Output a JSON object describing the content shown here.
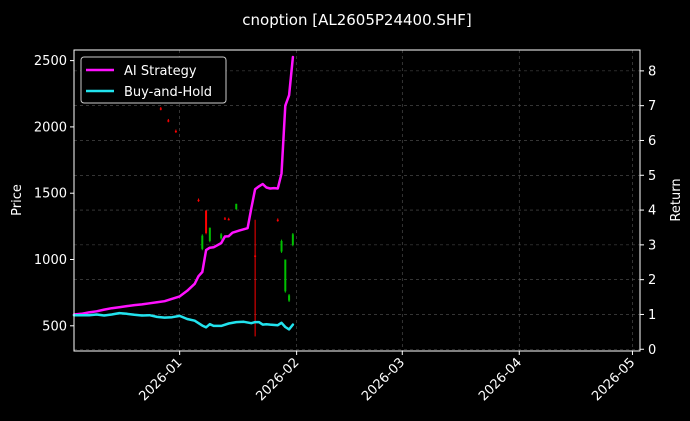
{
  "chart_data": {
    "type": "line",
    "title": "cnoption [AL2605P24400.SHF]",
    "ylabel_left": "Price",
    "ylabel_right": "Return",
    "xlim": [
      "2025-12-04",
      "2026-05-03"
    ],
    "ylim_left": [
      310,
      2580
    ],
    "ylim_right": [
      -0.05,
      8.6
    ],
    "x_ticks": [
      "2026-01-01",
      "2026-02-01",
      "2026-03-01",
      "2026-04-01",
      "2026-05-01"
    ],
    "x_tick_labels": [
      "2026-01",
      "2026-02",
      "2026-03",
      "2026-04",
      "2026-05"
    ],
    "y_left_ticks": [
      500,
      1000,
      1500,
      2000,
      2500
    ],
    "y_right_ticks": [
      0,
      1,
      2,
      3,
      4,
      5,
      6,
      7,
      8
    ],
    "grid": true,
    "legend_position": "upper-left",
    "colors": {
      "background": "#000000",
      "axes": "#ffffff",
      "grid": "#555555",
      "ai_strategy": "#ff11ff",
      "buy_and_hold": "#22e3ee",
      "candle_up": "#ff0000",
      "candle_down": "#00c000"
    },
    "series": [
      {
        "name": "AI Strategy",
        "axis": "right",
        "x": [
          "2025-12-04",
          "2025-12-06",
          "2025-12-08",
          "2025-12-10",
          "2025-12-12",
          "2025-12-14",
          "2025-12-16",
          "2025-12-18",
          "2025-12-20",
          "2025-12-22",
          "2025-12-24",
          "2025-12-26",
          "2025-12-28",
          "2025-12-30",
          "2026-01-01",
          "2026-01-03",
          "2026-01-05",
          "2026-01-06",
          "2026-01-07",
          "2026-01-08",
          "2026-01-09",
          "2026-01-10",
          "2026-01-12",
          "2026-01-13",
          "2026-01-14",
          "2026-01-15",
          "2026-01-17",
          "2026-01-19",
          "2026-01-20",
          "2026-01-21",
          "2026-01-22",
          "2026-01-23",
          "2026-01-24",
          "2026-01-25",
          "2026-01-26",
          "2026-01-27",
          "2026-01-28",
          "2026-01-29",
          "2026-01-30",
          "2026-01-31"
        ],
        "values": [
          1.0,
          1.02,
          1.06,
          1.09,
          1.14,
          1.18,
          1.21,
          1.24,
          1.27,
          1.29,
          1.32,
          1.35,
          1.38,
          1.45,
          1.52,
          1.68,
          1.88,
          2.1,
          2.22,
          2.85,
          2.92,
          2.93,
          3.05,
          3.24,
          3.25,
          3.35,
          3.42,
          3.48,
          4.05,
          4.6,
          4.68,
          4.75,
          4.65,
          4.62,
          4.63,
          4.62,
          5.05,
          7.0,
          7.3,
          8.4
        ]
      },
      {
        "name": "Buy-and-Hold",
        "axis": "right",
        "x": [
          "2025-12-04",
          "2025-12-06",
          "2025-12-08",
          "2025-12-10",
          "2025-12-12",
          "2025-12-14",
          "2025-12-16",
          "2025-12-18",
          "2025-12-20",
          "2025-12-22",
          "2025-12-24",
          "2025-12-26",
          "2025-12-28",
          "2025-12-30",
          "2026-01-01",
          "2026-01-03",
          "2026-01-05",
          "2026-01-07",
          "2026-01-08",
          "2026-01-09",
          "2026-01-10",
          "2026-01-12",
          "2026-01-14",
          "2026-01-16",
          "2026-01-18",
          "2026-01-20",
          "2026-01-21",
          "2026-01-22",
          "2026-01-23",
          "2026-01-24",
          "2026-01-25",
          "2026-01-27",
          "2026-01-28",
          "2026-01-29",
          "2026-01-30",
          "2026-01-31"
        ],
        "values": [
          0.98,
          0.98,
          0.98,
          1.0,
          0.97,
          1.0,
          1.04,
          1.02,
          0.99,
          0.97,
          0.98,
          0.93,
          0.91,
          0.92,
          0.96,
          0.87,
          0.82,
          0.68,
          0.63,
          0.72,
          0.67,
          0.67,
          0.74,
          0.78,
          0.79,
          0.75,
          0.78,
          0.78,
          0.71,
          0.72,
          0.71,
          0.69,
          0.76,
          0.64,
          0.57,
          0.71
        ]
      }
    ],
    "candles": [
      {
        "x": "2025-12-27",
        "open": 2130,
        "close": 2140,
        "high": 2150,
        "low": 2125
      },
      {
        "x": "2025-12-29",
        "open": 2040,
        "close": 2050,
        "high": 2060,
        "low": 2035
      },
      {
        "x": "2025-12-31",
        "open": 1960,
        "close": 1970,
        "high": 1980,
        "low": 1955
      },
      {
        "x": "2026-01-06",
        "open": 1440,
        "close": 1450,
        "high": 1460,
        "low": 1435
      },
      {
        "x": "2026-01-07",
        "open": 1180,
        "close": 1080,
        "high": 1190,
        "low": 1070
      },
      {
        "x": "2026-01-08",
        "open": 1200,
        "close": 1370,
        "high": 1370,
        "low": 1190
      },
      {
        "x": "2026-01-09",
        "open": 1240,
        "close": 1140,
        "high": 1240,
        "low": 1130
      },
      {
        "x": "2026-01-12",
        "open": 1190,
        "close": 1160,
        "high": 1200,
        "low": 1150
      },
      {
        "x": "2026-01-13",
        "open": 1305,
        "close": 1310,
        "high": 1320,
        "low": 1300
      },
      {
        "x": "2026-01-14",
        "open": 1300,
        "close": 1305,
        "high": 1315,
        "low": 1295
      },
      {
        "x": "2026-01-16",
        "open": 1420,
        "close": 1380,
        "high": 1420,
        "low": 1375
      },
      {
        "x": "2026-01-21",
        "open": 1020,
        "close": 1030,
        "high": 1300,
        "low": 420
      },
      {
        "x": "2026-01-27",
        "open": 1290,
        "close": 1300,
        "high": 1310,
        "low": 1285
      },
      {
        "x": "2026-01-28",
        "open": 1140,
        "close": 1060,
        "high": 1150,
        "low": 1050
      },
      {
        "x": "2026-01-29",
        "open": 1000,
        "close": 760,
        "high": 1000,
        "low": 750
      },
      {
        "x": "2026-01-30",
        "open": 730,
        "close": 690,
        "high": 740,
        "low": 680
      },
      {
        "x": "2026-01-31",
        "open": 1190,
        "close": 1110,
        "high": 1200,
        "low": 1100
      }
    ]
  }
}
